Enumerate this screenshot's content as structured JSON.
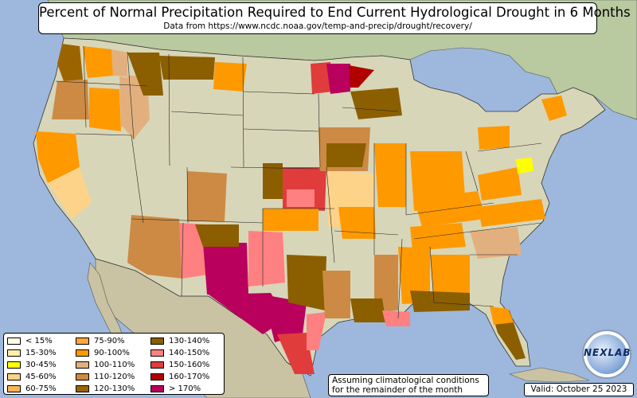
{
  "header": {
    "title": "Percent of Normal Precipitation Required to End Current Hydrological Drought in 6 Months",
    "subtitle": "Data from https://www.ncdc.noaa.gov/temp-and-precip/drought/recovery/"
  },
  "legend": {
    "items": [
      {
        "label": "< 15%",
        "color": "#ffffe6"
      },
      {
        "label": "15-30%",
        "color": "#fff0a8"
      },
      {
        "label": "30-45%",
        "color": "#ffff00"
      },
      {
        "label": "45-60%",
        "color": "#fdd38a"
      },
      {
        "label": "60-75%",
        "color": "#fcb45c"
      },
      {
        "label": "75-90%",
        "color": "#fba63d"
      },
      {
        "label": "90-100%",
        "color": "#ff9900"
      },
      {
        "label": "100-110%",
        "color": "#e2b07f"
      },
      {
        "label": "110-120%",
        "color": "#cc8a45"
      },
      {
        "label": "120-130%",
        "color": "#9c6400"
      },
      {
        "label": "130-140%",
        "color": "#8b5e00"
      },
      {
        "label": "140-150%",
        "color": "#ff8080"
      },
      {
        "label": "150-160%",
        "color": "#e03c3c"
      },
      {
        "label": "160-170%",
        "color": "#b00000"
      },
      {
        "label": "> 170%",
        "color": "#b8005c"
      }
    ]
  },
  "note": {
    "line1": "Assuming climatological conditions",
    "line2": "for the remainder of the month"
  },
  "valid": "Valid: October 25 2023",
  "logo": {
    "text": "NEXLAB"
  },
  "colors": {
    "ocean": "#9db8dc",
    "land": "#d8d6b8",
    "canada": "#b9c9a0",
    "mexico": "#c9c3a4"
  }
}
